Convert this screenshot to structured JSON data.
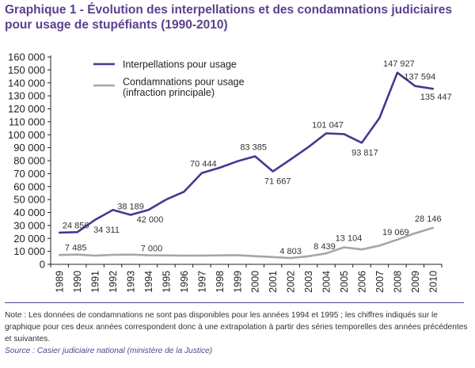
{
  "title": "Graphique 1 - Évolution des interpellations et des condamnations judiciaires pour usage de stupéfiants (1990-2010)",
  "note": "Note : Les données de condamnations ne sont pas disponibles pour les années 1994 et 1995 ; les chiffres indiqués sur le graphique pour ces deux années correspondent donc à une extrapolation à partir des séries temporelles des années précédentes et suivantes.",
  "source": "Source : Casier judiciaire national (ministère de la Justice)",
  "colors": {
    "interpellations": "#4b3591",
    "condamnations": "#a6a6a6",
    "accent": "#5b3f8f"
  },
  "chart_data": {
    "type": "line",
    "title": "Graphique 1 - Évolution des interpellations et des condamnations judiciaires pour usage de stupéfiants (1990-2010)",
    "x": [
      "1989",
      "1990",
      "1991",
      "1992",
      "1993",
      "1994",
      "1995",
      "1996",
      "1997",
      "1998",
      "1999",
      "2000",
      "2001",
      "2002",
      "2003",
      "2004",
      "2005",
      "2006",
      "2007",
      "2008",
      "2009",
      "2010"
    ],
    "ylim": [
      0,
      160000
    ],
    "yticks": [
      0,
      10000,
      20000,
      30000,
      40000,
      50000,
      60000,
      70000,
      80000,
      90000,
      100000,
      110000,
      120000,
      130000,
      140000,
      150000,
      160000
    ],
    "ytick_labels": [
      "0",
      "10 000",
      "20 000",
      "30 000",
      "40 000",
      "50 000",
      "60 000",
      "70 000",
      "80 000",
      "90 000",
      "100 000",
      "110 000",
      "120 000",
      "130 000",
      "140 000",
      "150 000",
      "160 000"
    ],
    "grid": false,
    "legend_position": "top-left",
    "series": [
      {
        "name": "Interpellations pour usage",
        "color": "#4b3591",
        "values": [
          24500,
          24856,
          34311,
          42000,
          38189,
          42000,
          50000,
          56000,
          70444,
          74500,
          79500,
          83385,
          71667,
          81000,
          90500,
          101047,
          100500,
          93817,
          113000,
          147927,
          137594,
          135447
        ],
        "data_labels": [
          {
            "x": "1990",
            "y": 24856,
            "text": "24 856"
          },
          {
            "x": "1991",
            "y": 34311,
            "text": "34 311"
          },
          {
            "x": "1993",
            "y": 38189,
            "text": "38 189"
          },
          {
            "x": "1994",
            "y": 42000,
            "text": "42 000"
          },
          {
            "x": "1997",
            "y": 70444,
            "text": "70 444"
          },
          {
            "x": "2000",
            "y": 83385,
            "text": "83 385"
          },
          {
            "x": "2001",
            "y": 71667,
            "text": "71 667"
          },
          {
            "x": "2004",
            "y": 101047,
            "text": "101 047"
          },
          {
            "x": "2006",
            "y": 93817,
            "text": "93 817"
          },
          {
            "x": "2008",
            "y": 147927,
            "text": "147 927"
          },
          {
            "x": "2009",
            "y": 137594,
            "text": "137 594"
          },
          {
            "x": "2010",
            "y": 135447,
            "text": "135 447"
          }
        ]
      },
      {
        "name": "Condamnations pour usage (infraction principale)",
        "legend_lines": [
          "Condamnations pour usage",
          "(infraction principale)"
        ],
        "color": "#a6a6a6",
        "values": [
          7200,
          7485,
          6700,
          7300,
          7500,
          7000,
          6900,
          6700,
          6800,
          6900,
          7100,
          6300,
          5600,
          4803,
          6200,
          8439,
          13104,
          11500,
          14500,
          19069,
          24000,
          28146
        ],
        "data_labels": [
          {
            "x": "1990",
            "y": 7485,
            "text": "7 485"
          },
          {
            "x": "1994",
            "y": 7000,
            "text": "7 000"
          },
          {
            "x": "2002",
            "y": 4803,
            "text": "4 803"
          },
          {
            "x": "2004",
            "y": 8439,
            "text": "8 439"
          },
          {
            "x": "2005",
            "y": 13104,
            "text": "13 104"
          },
          {
            "x": "2008",
            "y": 19069,
            "text": "19 069"
          },
          {
            "x": "2010",
            "y": 28146,
            "text": "28 146"
          }
        ]
      }
    ]
  }
}
